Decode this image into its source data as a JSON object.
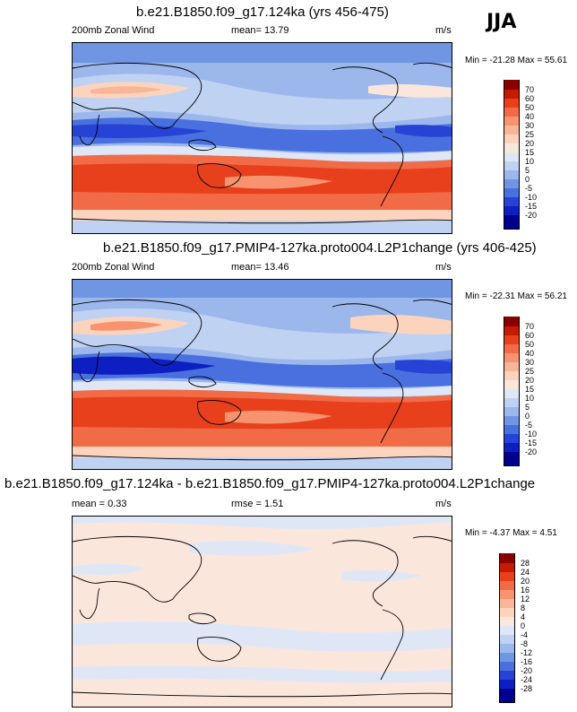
{
  "season": "JJA",
  "chart_data": [
    {
      "type": "heatmap",
      "title": "b.e21.B1850.f09_g17.124ka (yrs 456-475)",
      "variable": "200mb Zonal Wind",
      "mean_label": "mean=",
      "mean": "13.79",
      "units": "m/s",
      "stats": "Min = -21.28 Max =  55.61",
      "min": -21.28,
      "max": 55.61,
      "levels": [
        "70",
        "60",
        "50",
        "40",
        "30",
        "25",
        "20",
        "15",
        "10",
        "5",
        "0",
        "-5",
        "-10",
        "-15",
        "-20"
      ],
      "colors": [
        "#8a0000",
        "#c51b00",
        "#e8401c",
        "#f26b47",
        "#f7946f",
        "#f9b598",
        "#fcd4be",
        "#fbe6dc",
        "#dfe7f7",
        "#c0d2f2",
        "#9cb7ec",
        "#7095e3",
        "#4a6fde",
        "#2643d6",
        "#0d1fc0",
        "#00008f"
      ]
    },
    {
      "type": "heatmap",
      "title": "b.e21.B1850.f09_g17.PMIP4-127ka.proto004.L2P1change (yrs 406-425)",
      "variable": "200mb Zonal Wind",
      "mean_label": "mean=",
      "mean": "13.46",
      "units": "m/s",
      "stats": "Min = -22.31 Max =  56.21",
      "min": -22.31,
      "max": 56.21,
      "levels": [
        "70",
        "60",
        "50",
        "40",
        "30",
        "25",
        "20",
        "15",
        "10",
        "5",
        "0",
        "-5",
        "-10",
        "-15",
        "-20"
      ],
      "colors": [
        "#8a0000",
        "#c51b00",
        "#e8401c",
        "#f26b47",
        "#f7946f",
        "#f9b598",
        "#fcd4be",
        "#fbe6dc",
        "#dfe7f7",
        "#c0d2f2",
        "#9cb7ec",
        "#7095e3",
        "#4a6fde",
        "#2643d6",
        "#0d1fc0",
        "#00008f"
      ]
    },
    {
      "type": "heatmap",
      "title": "b.e21.B1850.f09_g17.124ka - b.e21.B1850.f09_g17.PMIP4-127ka.proto004.L2P1change",
      "mean_label": "mean =",
      "mean": "0.33",
      "rmse_label": "rmse =",
      "rmse": "1.51",
      "units": "m/s",
      "stats": "Min =  -4.37 Max =   4.51",
      "min": -4.37,
      "max": 4.51,
      "levels": [
        "28",
        "24",
        "20",
        "16",
        "12",
        "8",
        "4",
        "0",
        "-4",
        "-8",
        "-12",
        "-16",
        "-20",
        "-24",
        "-28"
      ],
      "colors": [
        "#8a0000",
        "#c51b00",
        "#e8401c",
        "#f26b47",
        "#f7946f",
        "#f9b598",
        "#fcd4be",
        "#fbe6dc",
        "#dfe7f7",
        "#c0d2f2",
        "#9cb7ec",
        "#7095e3",
        "#4a6fde",
        "#2643d6",
        "#0d1fc0",
        "#00008f"
      ]
    }
  ]
}
